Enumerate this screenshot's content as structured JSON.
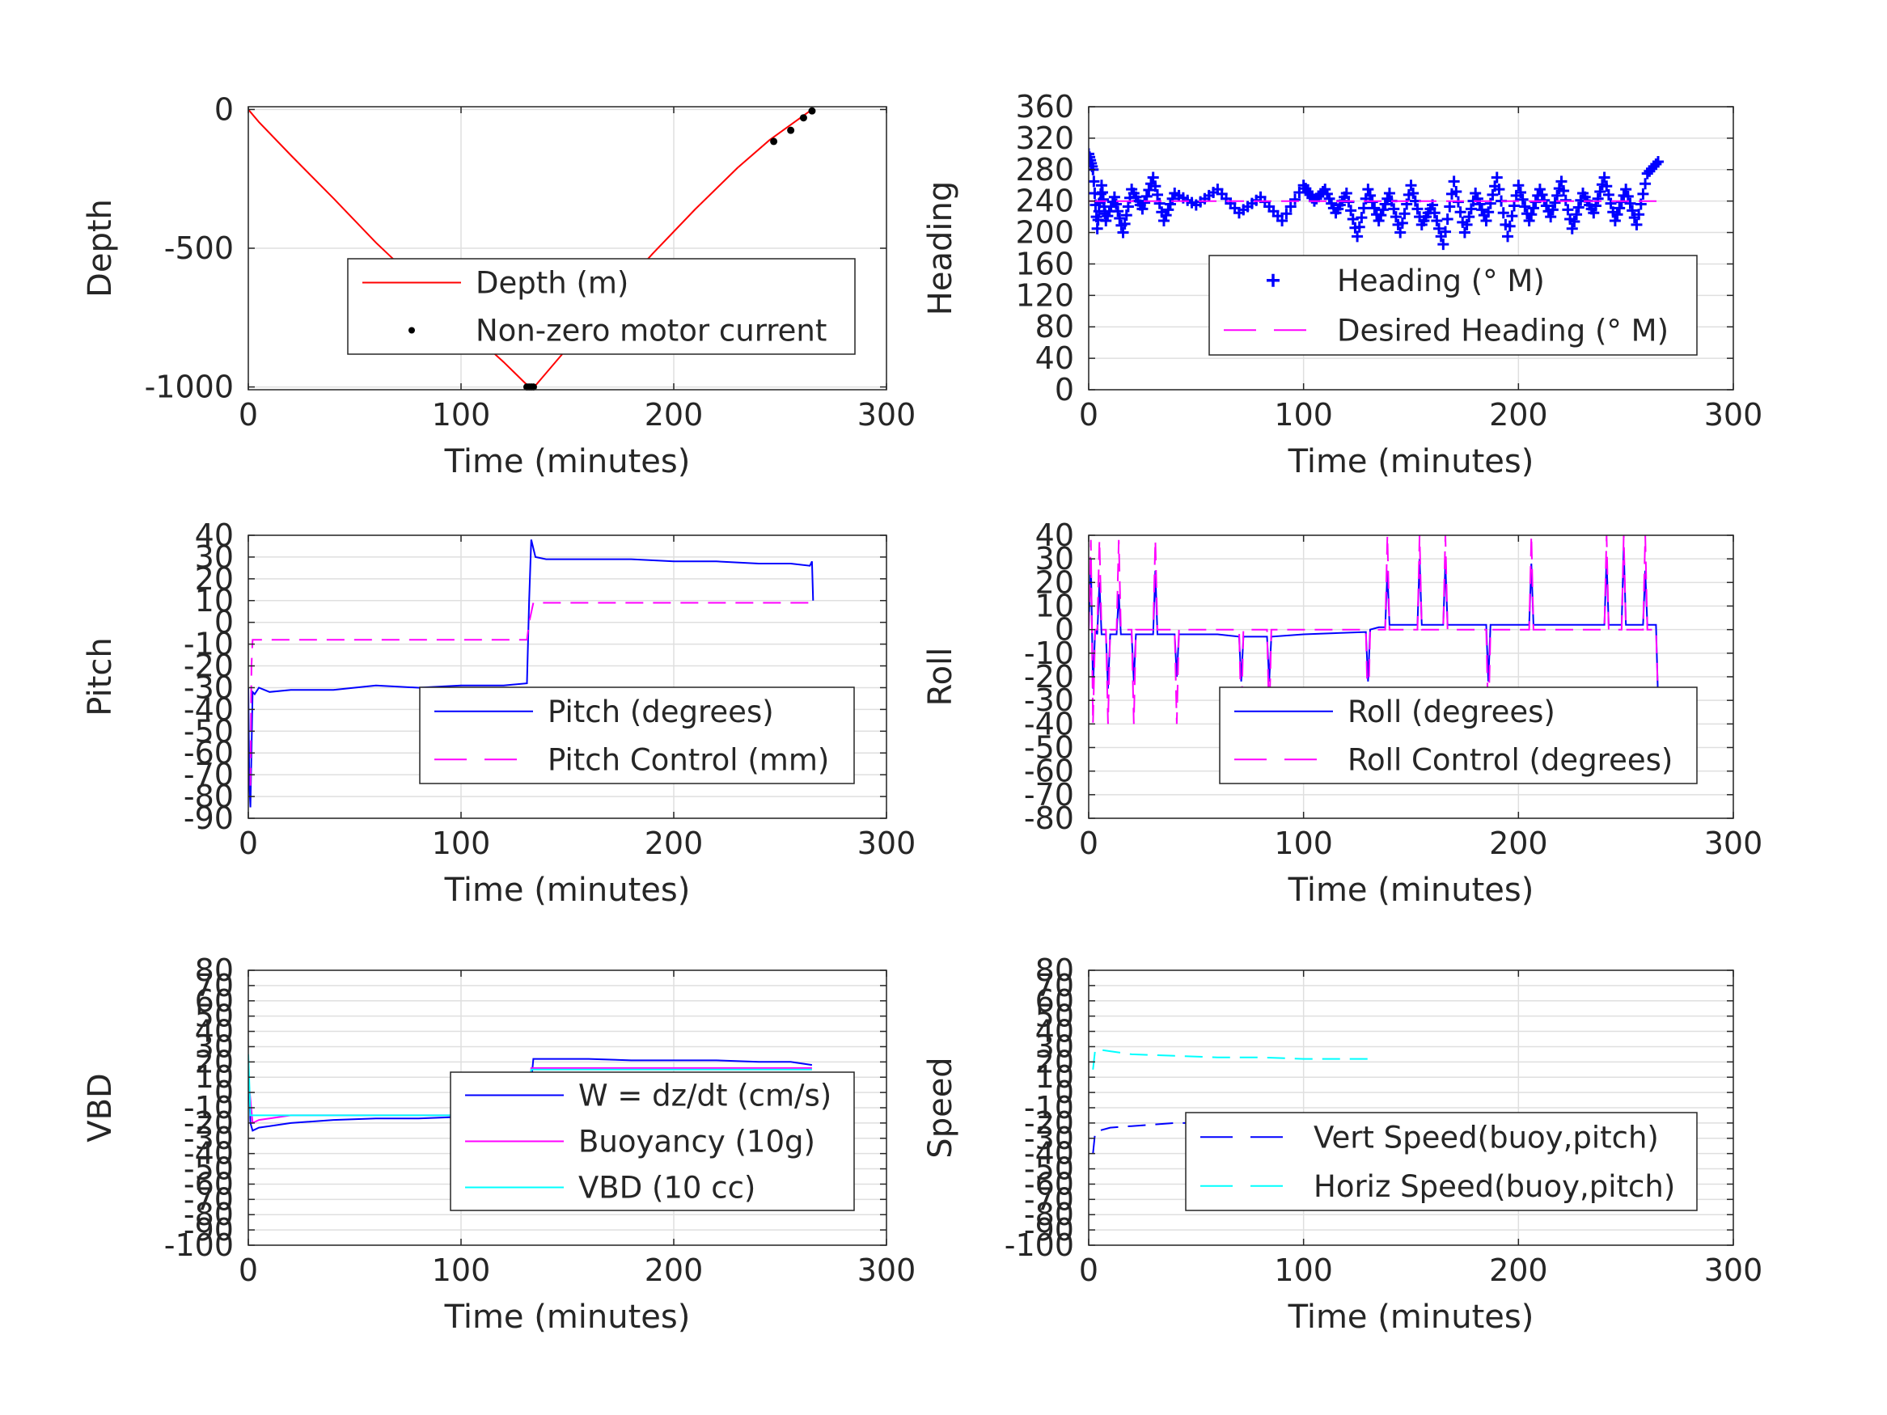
{
  "chart_data": [
    {
      "id": "depth",
      "type": "line",
      "xlabel": "Time (minutes)",
      "ylabel": "Depth",
      "xlim": [
        0,
        300
      ],
      "ylim": [
        -1010,
        10
      ],
      "xticks": [
        0,
        100,
        200,
        300
      ],
      "yticks": [
        -1000,
        -500,
        0
      ],
      "ytick_labels": [
        "-1000",
        "-500",
        "0"
      ],
      "grid": true,
      "legend": {
        "placement": "center-right",
        "row_gap": 1.0,
        "col": [
          0.02,
          0.22,
          0.25
        ]
      },
      "series": [
        {
          "name": "Depth (m)",
          "style": "solid",
          "color": "#ff0000",
          "x": [
            0,
            5,
            20,
            40,
            60,
            80,
            100,
            120,
            132,
            135,
            150,
            170,
            190,
            210,
            230,
            245,
            255,
            265
          ],
          "y": [
            0,
            -45,
            -165,
            -320,
            -480,
            -625,
            -770,
            -910,
            -1000,
            -995,
            -860,
            -690,
            -520,
            -360,
            -210,
            -110,
            -55,
            0
          ]
        },
        {
          "name": "Non-zero motor current",
          "style": "dot",
          "color": "#000000",
          "x": [
            131,
            132,
            133,
            134,
            247,
            255,
            261,
            265
          ],
          "y": [
            -1000,
            -1000,
            -1000,
            -1000,
            -115,
            -75,
            -30,
            -5
          ]
        }
      ]
    },
    {
      "id": "heading",
      "type": "scatter",
      "xlabel": "Time (minutes)",
      "ylabel": "Heading",
      "xlim": [
        0,
        300
      ],
      "ylim": [
        0,
        360
      ],
      "xticks": [
        0,
        100,
        200,
        300
      ],
      "yticks": [
        0,
        40,
        80,
        120,
        160,
        200,
        240,
        280,
        320,
        360
      ],
      "ytick_labels": [
        "0",
        "40",
        "80",
        "120",
        "160",
        "200",
        "240",
        "280",
        "320",
        "360"
      ],
      "grid": true,
      "legend": {
        "placement": "bottom-right",
        "row_gap": 1.0,
        "col": [
          0.02,
          0.2,
          0.27
        ]
      },
      "series": [
        {
          "name": "Heading (° M)",
          "style": "plus",
          "color": "#0000ff",
          "x": [
            0,
            2,
            4,
            6,
            8,
            12,
            16,
            20,
            25,
            30,
            35,
            40,
            50,
            60,
            70,
            80,
            90,
            100,
            105,
            110,
            115,
            120,
            125,
            130,
            135,
            140,
            145,
            150,
            155,
            160,
            165,
            170,
            175,
            180,
            185,
            190,
            195,
            200,
            205,
            210,
            215,
            220,
            225,
            230,
            235,
            240,
            245,
            250,
            255,
            260,
            265
          ],
          "y": [
            300,
            280,
            205,
            260,
            215,
            245,
            200,
            255,
            230,
            270,
            215,
            250,
            235,
            255,
            225,
            245,
            215,
            260,
            240,
            255,
            225,
            250,
            195,
            255,
            215,
            250,
            200,
            260,
            210,
            235,
            185,
            265,
            200,
            250,
            215,
            270,
            195,
            260,
            215,
            255,
            220,
            265,
            205,
            250,
            225,
            270,
            215,
            255,
            210,
            275,
            290
          ]
        },
        {
          "name": "Desired Heading (° M)",
          "style": "dash",
          "color": "#ff00ff",
          "x": [
            0,
            265
          ],
          "y": [
            240,
            240
          ]
        }
      ]
    },
    {
      "id": "pitch",
      "type": "line",
      "xlabel": "Time (minutes)",
      "ylabel": "Pitch",
      "xlim": [
        0,
        300
      ],
      "ylim": [
        -90,
        40
      ],
      "xticks": [
        0,
        100,
        200,
        300
      ],
      "yticks": [
        -90,
        -80,
        -70,
        -60,
        -50,
        -40,
        -30,
        -20,
        -10,
        0,
        10,
        20,
        30,
        40
      ],
      "ytick_labels": [
        "-90",
        "-80",
        "-70",
        "-60",
        "-50",
        "-40",
        "-30",
        "-20",
        "-10",
        "0",
        "10",
        "20",
        "30",
        "40"
      ],
      "grid": true,
      "legend": {
        "placement": "bottom-right",
        "row_gap": 1.0,
        "col": [
          0.02,
          0.26,
          0.28
        ]
      },
      "series": [
        {
          "name": "Pitch (degrees)",
          "style": "solid",
          "color": "#0000ff",
          "x": [
            0,
            0.5,
            1,
            1.5,
            2,
            3,
            5,
            10,
            20,
            40,
            60,
            80,
            100,
            120,
            131,
            132,
            133,
            135,
            140,
            160,
            180,
            200,
            220,
            240,
            255,
            264,
            265,
            265.5
          ],
          "y": [
            -30,
            -75,
            -85,
            -60,
            -32,
            -33,
            -30,
            -32,
            -31,
            -31,
            -29,
            -30,
            -29,
            -29,
            -28,
            10,
            38,
            30,
            29,
            29,
            29,
            28,
            28,
            27,
            27,
            26,
            28,
            10
          ]
        },
        {
          "name": "Pitch Control (mm)",
          "style": "dash",
          "color": "#ff00ff",
          "x": [
            1,
            1.5,
            2,
            5,
            131,
            132,
            134,
            265
          ],
          "y": [
            -75,
            -20,
            -8,
            -8,
            -8,
            0,
            9,
            9
          ]
        }
      ]
    },
    {
      "id": "roll",
      "type": "line",
      "xlabel": "Time (minutes)",
      "ylabel": "Roll",
      "xlim": [
        0,
        300
      ],
      "ylim": [
        -80,
        40
      ],
      "xticks": [
        0,
        100,
        200,
        300
      ],
      "yticks": [
        -80,
        -70,
        -60,
        -50,
        -40,
        -30,
        -20,
        -10,
        0,
        10,
        20,
        30,
        40
      ],
      "ytick_labels": [
        "-80",
        "-70",
        "-60",
        "-50",
        "-40",
        "-30",
        "-20",
        "-10",
        "0",
        "10",
        "20",
        "30",
        "40"
      ],
      "grid": true,
      "legend": {
        "placement": "bottom-right",
        "row_gap": 1.0,
        "col": [
          0.02,
          0.24,
          0.27
        ]
      },
      "series": [
        {
          "name": "Roll (degrees)",
          "style": "solid",
          "color": "#0000ff",
          "x": [
            0,
            1,
            2,
            3,
            4,
            5,
            6,
            8,
            9,
            10,
            13,
            14,
            15,
            20,
            21,
            22,
            30,
            31,
            32,
            40,
            41,
            42,
            60,
            70,
            71,
            72,
            83,
            84,
            85,
            100,
            129,
            130,
            131,
            135,
            138,
            139,
            140,
            150,
            153,
            154,
            155,
            160,
            165,
            166,
            167,
            180,
            185,
            186,
            187,
            200,
            205,
            206,
            207,
            230,
            240,
            241,
            242,
            245,
            248,
            249,
            250,
            255,
            258,
            259,
            260,
            264,
            265
          ],
          "y": [
            0,
            30,
            -25,
            0,
            -2,
            20,
            -2,
            -2,
            -25,
            -2,
            -2,
            15,
            -2,
            -2,
            -22,
            -2,
            -2,
            25,
            -2,
            -2,
            -20,
            -2,
            -2,
            -3,
            -22,
            -3,
            -3,
            -22,
            -3,
            -2,
            -1,
            -22,
            0,
            1,
            1,
            25,
            2,
            2,
            2,
            30,
            2,
            2,
            2,
            28,
            2,
            2,
            2,
            -22,
            2,
            2,
            2,
            28,
            2,
            2,
            2,
            30,
            2,
            2,
            2,
            35,
            2,
            2,
            2,
            25,
            2,
            2,
            -30
          ]
        },
        {
          "name": "Roll Control (degrees)",
          "style": "dash",
          "color": "#ff00ff",
          "x": [
            0,
            1,
            2,
            3,
            4,
            5,
            6,
            8,
            9,
            10,
            13,
            14,
            15,
            20,
            21,
            22,
            30,
            31,
            32,
            40,
            41,
            42,
            60,
            70,
            71,
            72,
            83,
            84,
            85,
            100,
            129,
            130,
            131,
            135,
            138,
            139,
            140,
            150,
            153,
            154,
            155,
            160,
            165,
            166,
            167,
            180,
            185,
            186,
            187,
            200,
            205,
            206,
            207,
            230,
            240,
            241,
            242,
            245,
            248,
            249,
            250,
            255,
            258,
            259,
            260,
            264,
            265
          ],
          "y": [
            0,
            38,
            -40,
            0,
            0,
            38,
            0,
            0,
            -40,
            0,
            0,
            38,
            0,
            0,
            -40,
            0,
            0,
            38,
            0,
            0,
            -40,
            0,
            0,
            0,
            -40,
            0,
            0,
            -40,
            0,
            0,
            0,
            -40,
            0,
            0,
            0,
            40,
            0,
            0,
            0,
            40,
            0,
            0,
            0,
            40,
            0,
            0,
            0,
            -40,
            0,
            0,
            0,
            40,
            0,
            0,
            0,
            40,
            0,
            0,
            0,
            40,
            0,
            0,
            0,
            40,
            0,
            0,
            -30
          ]
        }
      ]
    },
    {
      "id": "vbd",
      "type": "line",
      "xlabel": "Time (minutes)",
      "ylabel": "VBD",
      "xlim": [
        0,
        300
      ],
      "ylim": [
        -100,
        80
      ],
      "xticks": [
        0,
        100,
        200,
        300
      ],
      "yticks": [
        -100,
        -90,
        -80,
        -70,
        -60,
        -50,
        -40,
        -30,
        -20,
        -10,
        0,
        10,
        20,
        30,
        40,
        50,
        60,
        70,
        80
      ],
      "ytick_labels": [
        "-100",
        "-90",
        "-80",
        "-70",
        "-60",
        "-50",
        "-40",
        "-30",
        "-20",
        "-10",
        "0",
        "10",
        "20",
        "30",
        "40",
        "50",
        "60",
        "70",
        "80"
      ],
      "grid": true,
      "legend": {
        "placement": "bottom-right",
        "row_gap": 1.0,
        "col": [
          0.02,
          0.22,
          0.25
        ]
      },
      "series": [
        {
          "name": "W = dz/dt (cm/s)",
          "style": "solid",
          "color": "#0000ff",
          "x": [
            0,
            0.5,
            1,
            2,
            5,
            10,
            20,
            40,
            60,
            80,
            100,
            120,
            128,
            130,
            132,
            134,
            140,
            160,
            180,
            200,
            220,
            240,
            255,
            265
          ],
          "y": [
            15,
            0,
            -20,
            -25,
            -23,
            -22,
            -20,
            -18,
            -17,
            -17,
            -16,
            -16,
            -17,
            -20,
            -8,
            22,
            22,
            22,
            21,
            21,
            21,
            20,
            20,
            18
          ]
        },
        {
          "name": "Buoyancy (10g)",
          "style": "solid",
          "color": "#ff00ff",
          "x": [
            0,
            2,
            5,
            10,
            20,
            131,
            133,
            140,
            265
          ],
          "y": [
            10,
            -20,
            -18,
            -17,
            -15,
            -15,
            16,
            16,
            16
          ]
        },
        {
          "name": "VBD (10 cc)",
          "style": "solid",
          "color": "#00ffff",
          "x": [
            0,
            1,
            3,
            10,
            131,
            133,
            265
          ],
          "y": [
            25,
            -15,
            -15,
            -15,
            -15,
            15,
            15
          ]
        }
      ]
    },
    {
      "id": "speed",
      "type": "line",
      "xlabel": "Time (minutes)",
      "ylabel": "Speed",
      "xlim": [
        0,
        300
      ],
      "ylim": [
        -100,
        80
      ],
      "xticks": [
        0,
        100,
        200,
        300
      ],
      "yticks": [
        -100,
        -90,
        -80,
        -70,
        -60,
        -50,
        -40,
        -30,
        -20,
        -10,
        0,
        10,
        20,
        30,
        40,
        50,
        60,
        70,
        80
      ],
      "ytick_labels": [
        "-100",
        "-90",
        "-80",
        "-70",
        "-60",
        "-50",
        "-40",
        "-30",
        "-20",
        "-10",
        "0",
        "10",
        "20",
        "30",
        "40",
        "50",
        "60",
        "70",
        "80"
      ],
      "grid": true,
      "legend": {
        "placement": "bottom-right",
        "row_gap": 1.0,
        "col": [
          0.02,
          0.24,
          0.27
        ]
      },
      "series": [
        {
          "name": "Vert Speed(buoy,pitch)",
          "style": "dash",
          "color": "#0000ff",
          "x": [
            2,
            3,
            5,
            10,
            20,
            40,
            60,
            80,
            100,
            120,
            132
          ],
          "y": [
            -40,
            -26,
            -25,
            -23,
            -22,
            -20,
            -20,
            -20,
            -19,
            -19,
            -19
          ]
        },
        {
          "name": "Horiz Speed(buoy,pitch)",
          "style": "dash",
          "color": "#00ffff",
          "x": [
            2,
            3,
            5,
            10,
            20,
            40,
            60,
            80,
            100,
            120,
            132
          ],
          "y": [
            15,
            28,
            28,
            27,
            25,
            24,
            23,
            23,
            22,
            22,
            22
          ]
        }
      ]
    }
  ]
}
